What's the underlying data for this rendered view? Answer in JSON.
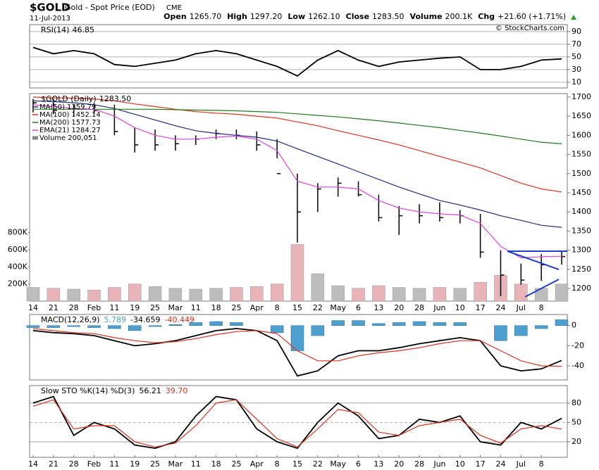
{
  "header": {
    "symbol": "$GOLD",
    "name": "Gold - Spot Price (EOD)",
    "exchange": "CME",
    "date": "11-Jul-2013",
    "quote": [
      {
        "label": "Open",
        "value": "1265.70"
      },
      {
        "label": "High",
        "value": "1297.20"
      },
      {
        "label": "Low",
        "value": "1262.10"
      },
      {
        "label": "Close",
        "value": "1283.50"
      },
      {
        "label": "Volume",
        "value": "200.1K"
      },
      {
        "label": "Chg",
        "value": "+21.60 (+1.71%)"
      }
    ],
    "copyright": "© StockCharts.com"
  },
  "chart_data": [
    {
      "type": "rsi",
      "title": "RSI(14)",
      "legend_value": "46.85",
      "ylim": [
        1,
        101
      ],
      "yticks": [
        90,
        70,
        50,
        30,
        10
      ],
      "grid": true,
      "series": [
        {
          "kind": "line",
          "color": "#000000",
          "values": [
            65,
            55,
            60,
            55,
            38,
            35,
            40,
            45,
            55,
            60,
            55,
            45,
            35,
            20,
            45,
            60,
            45,
            35,
            42,
            45,
            48,
            50,
            30,
            30,
            35,
            45,
            46.85
          ]
        }
      ]
    },
    {
      "type": "price",
      "title": "$GOLD (Daily)",
      "legend_value": "1283.50",
      "ylim": [
        1167,
        1709
      ],
      "yticks": [
        1200,
        1250,
        1300,
        1350,
        1400,
        1450,
        1500,
        1550,
        1600,
        1650,
        1700
      ],
      "grid": false,
      "y2lim": [
        0,
        2421000
      ],
      "y2ticks": [
        {
          "value": 200000,
          "label": "200K"
        },
        {
          "value": 400000,
          "label": "400K"
        },
        {
          "value": 600000,
          "label": "600K"
        },
        {
          "value": 800000,
          "label": "800K"
        }
      ],
      "categories": [
        "14",
        "21",
        "28",
        "Feb",
        "11",
        "19",
        "25",
        "Mar",
        "11",
        "18",
        "25",
        "Apr",
        "8",
        "15",
        "22",
        "May",
        "6",
        "13",
        "20",
        "28",
        "Jun",
        "10",
        "17",
        "24",
        "Jul",
        "8",
        null
      ],
      "series": [
        {
          "kind": "ohlc",
          "color": "#000000",
          "high": [
            1695,
            1695,
            1680,
            1685,
            1680,
            1620,
            1615,
            1600,
            1600,
            1615,
            1615,
            1610,
            1590,
            1500,
            1475,
            1490,
            1480,
            1445,
            1415,
            1420,
            1425,
            1405,
            1395,
            1300,
            1265,
            1290,
            1297.2
          ],
          "low": [
            1660,
            1655,
            1650,
            1655,
            1600,
            1555,
            1560,
            1560,
            1575,
            1590,
            1590,
            1560,
            1540,
            1320,
            1400,
            1440,
            1440,
            1375,
            1340,
            1370,
            1375,
            1370,
            1280,
            1180,
            1210,
            1220,
            1262.1
          ],
          "close": [
            1685,
            1665,
            1670,
            1665,
            1610,
            1575,
            1575,
            1578,
            1590,
            1605,
            1600,
            1575,
            1500,
            1400,
            1460,
            1475,
            1445,
            1385,
            1390,
            1390,
            1385,
            1390,
            1295,
            1235,
            1222,
            1262,
            1283.5
          ]
        },
        {
          "kind": "line",
          "name": "MA(50)",
          "legend_value": "1359.79",
          "color": "#1f2a80",
          "values": [
            1690,
            1688,
            1685,
            1680,
            1670,
            1655,
            1640,
            1625,
            1612,
            1605,
            1600,
            1595,
            1585,
            1565,
            1545,
            1525,
            1505,
            1485,
            1465,
            1447,
            1430,
            1418,
            1405,
            1390,
            1378,
            1365,
            1359.79
          ]
        },
        {
          "kind": "line",
          "name": "MA(100)",
          "legend_value": "1452.14",
          "color": "#e0301e",
          "values": [
            1700,
            1698,
            1697,
            1695,
            1690,
            1682,
            1675,
            1668,
            1662,
            1658,
            1655,
            1650,
            1645,
            1635,
            1625,
            1612,
            1600,
            1588,
            1575,
            1560,
            1545,
            1530,
            1515,
            1495,
            1475,
            1460,
            1452.14
          ]
        },
        {
          "kind": "line",
          "name": "MA(200)",
          "legend_value": "1577.73",
          "color": "#1e7a1e",
          "values": [
            1668,
            1668,
            1668,
            1668,
            1668,
            1668,
            1668,
            1667,
            1666,
            1665,
            1664,
            1662,
            1660,
            1656,
            1652,
            1648,
            1643,
            1638,
            1632,
            1626,
            1620,
            1613,
            1606,
            1598,
            1590,
            1582,
            1577.73
          ]
        },
        {
          "kind": "line",
          "name": "EMA(21)",
          "legend_value": "1284.27",
          "color": "#e040e0",
          "values": [
            1680,
            1675,
            1670,
            1668,
            1650,
            1620,
            1600,
            1590,
            1590,
            1595,
            1598,
            1590,
            1560,
            1480,
            1465,
            1465,
            1460,
            1430,
            1410,
            1400,
            1395,
            1392,
            1370,
            1310,
            1280,
            1283,
            1284.27
          ]
        },
        {
          "kind": "volume",
          "axis": "y2",
          "name": "Volume",
          "legend_value": "200,051",
          "color": "#bdbdbd",
          "down_color": "#e8b4b8",
          "values": [
            160000,
            150000,
            140000,
            130000,
            160000,
            200000,
            170000,
            150000,
            140000,
            150000,
            160000,
            170000,
            200000,
            660000,
            320000,
            180000,
            150000,
            180000,
            160000,
            150000,
            160000,
            150000,
            220000,
            300000,
            200000,
            150000,
            200051
          ]
        }
      ]
    },
    {
      "type": "macd",
      "title": "MACD(12,26,9)",
      "ylim": [
        -54,
        11
      ],
      "yticks": [
        0,
        -20,
        -40
      ],
      "grid": false,
      "series": [
        {
          "kind": "histogram",
          "legend_value": "5.789",
          "color": "#4d9fd0",
          "values": [
            -2,
            -2,
            -1,
            -2,
            -3,
            -5,
            -1,
            1,
            3,
            4,
            3,
            0,
            -7,
            -25,
            -10,
            5,
            5,
            2,
            3,
            4,
            3,
            3,
            0,
            -15,
            -10,
            -3,
            5.789
          ]
        },
        {
          "kind": "line",
          "legend_value": "-34.659",
          "color": "#000000",
          "values": [
            -5,
            -7,
            -8,
            -10,
            -15,
            -20,
            -18,
            -15,
            -10,
            -5,
            -3,
            -5,
            -15,
            -50,
            -45,
            -30,
            -25,
            -25,
            -22,
            -18,
            -15,
            -12,
            -15,
            -40,
            -45,
            -43,
            -34.659
          ]
        },
        {
          "kind": "line",
          "legend_value": "-40.449",
          "color": "#e0301e",
          "values": [
            -3,
            -5,
            -7,
            -8,
            -12,
            -15,
            -17,
            -16,
            -13,
            -9,
            -6,
            -5,
            -8,
            -25,
            -35,
            -35,
            -30,
            -27,
            -25,
            -22,
            -18,
            -15,
            -15,
            -25,
            -35,
            -40,
            -40.449
          ]
        }
      ]
    },
    {
      "type": "sto",
      "title": "Slow STO %K(14) %D(3)",
      "ylim": [
        -4,
        107
      ],
      "yticks": [
        80,
        50,
        20
      ],
      "grid": true,
      "categories": [
        "14",
        "21",
        "28",
        "Feb",
        "11",
        "19",
        "25",
        "Mar",
        "11",
        "18",
        "25",
        "Apr",
        "8",
        "15",
        "22",
        "May",
        "6",
        "13",
        "20",
        "28",
        "Jun",
        "10",
        "17",
        "24",
        "Jul",
        "8",
        null
      ],
      "series": [
        {
          "kind": "line",
          "legend_value": "56.21",
          "color": "#000000",
          "values": [
            80,
            90,
            30,
            50,
            40,
            15,
            10,
            20,
            60,
            90,
            85,
            40,
            20,
            10,
            50,
            80,
            60,
            25,
            30,
            55,
            50,
            60,
            20,
            15,
            50,
            40,
            56.21
          ]
        },
        {
          "kind": "line",
          "legend_value": "39.70",
          "color": "#e0301e",
          "values": [
            75,
            85,
            40,
            45,
            45,
            20,
            12,
            18,
            45,
            80,
            85,
            55,
            25,
            12,
            40,
            70,
            65,
            35,
            30,
            45,
            50,
            55,
            30,
            18,
            40,
            45,
            39.7
          ]
        }
      ]
    }
  ]
}
